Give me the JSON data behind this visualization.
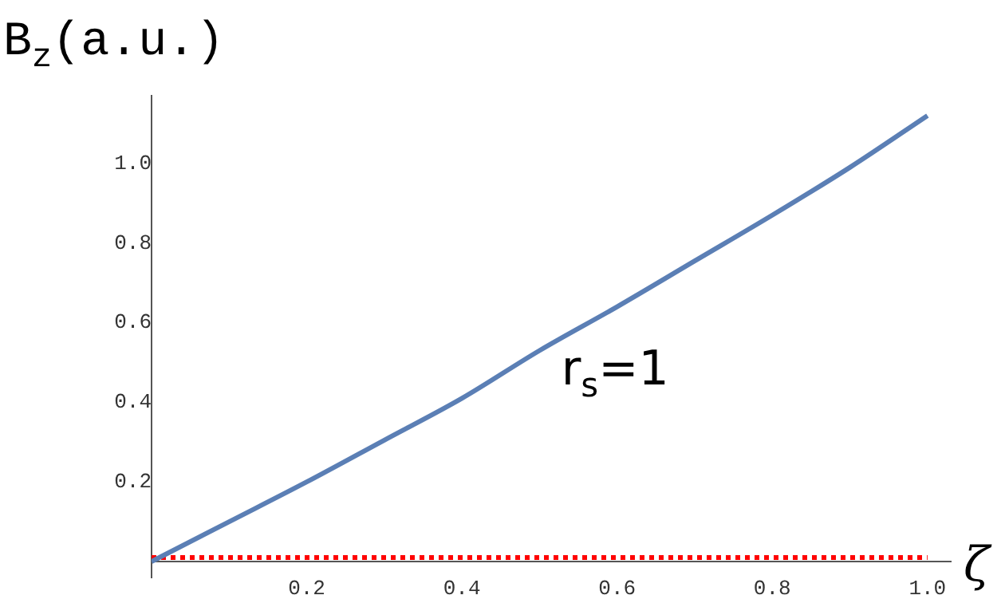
{
  "chart_data": {
    "type": "line",
    "xlabel": "ζ",
    "ylabel": "B$_{z}$(a.u.)",
    "x": [
      0,
      0.1,
      0.2,
      0.3,
      0.4,
      0.5,
      0.6,
      0.7,
      0.8,
      0.9,
      1.0
    ],
    "series": [
      {
        "color": "#5b7fb5",
        "values": [
          0,
          0.1,
          0.2,
          0.305,
          0.41,
          0.53,
          0.64,
          0.755,
          0.87,
          0.99,
          1.12
        ],
        "line_style": "solid"
      },
      {
        "color": "#ff0000",
        "values": [
          0.01,
          0.01,
          0.01,
          0.01,
          0.01,
          0.01,
          0.01,
          0.01,
          0.01,
          0.01,
          0.01
        ],
        "line_style": "dotted"
      }
    ],
    "xlim": [
      0,
      1.03
    ],
    "ylim": [
      -0.04,
      1.17
    ],
    "xticks": [
      0.2,
      0.4,
      0.6,
      0.8,
      {
        "value": 1,
        "label": "1.0"
      }
    ],
    "yticks": [
      0.2,
      0.4,
      0.6,
      0.8,
      {
        "value": 1,
        "label": "1.0"
      }
    ],
    "grid": false,
    "legend": false,
    "marker": "none",
    "annotations": [
      "r$_{s}$=1"
    ]
  }
}
